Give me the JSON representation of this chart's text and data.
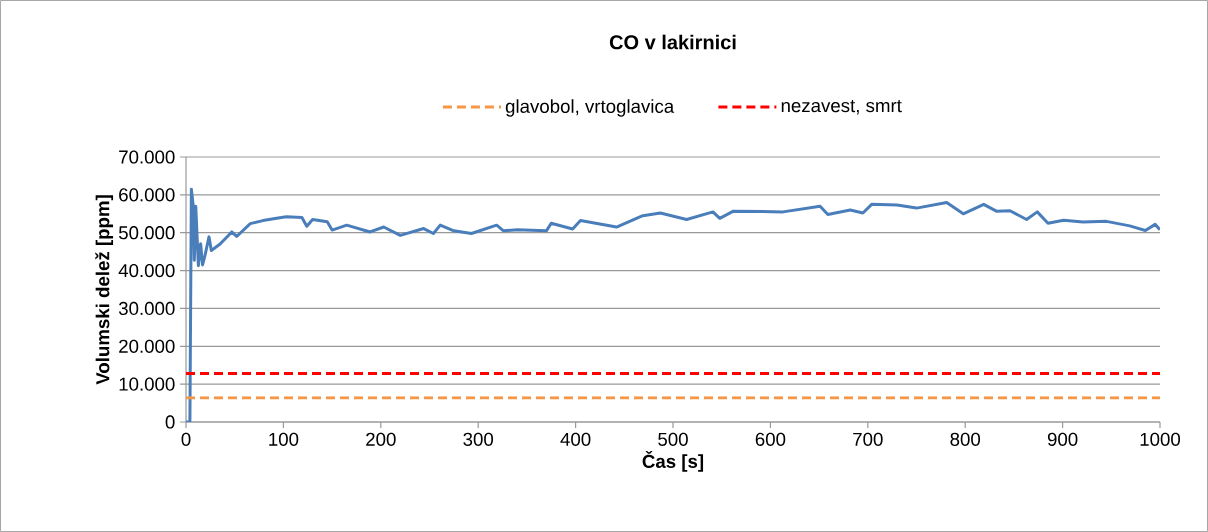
{
  "chart_data": {
    "type": "line",
    "title": "CO v lakirnici",
    "xlabel": "Čas [s]",
    "ylabel": "Volumski delež [ppm]",
    "xlim": [
      0,
      1000
    ],
    "ylim": [
      0,
      70000
    ],
    "xticks": [
      0,
      100,
      200,
      300,
      400,
      500,
      600,
      700,
      800,
      900,
      1000
    ],
    "yticks": [
      {
        "value": 0,
        "label": "0"
      },
      {
        "value": 10000,
        "label": "10.000"
      },
      {
        "value": 20000,
        "label": "20.000"
      },
      {
        "value": 30000,
        "label": "30.000"
      },
      {
        "value": 40000,
        "label": "40.000"
      },
      {
        "value": 50000,
        "label": "50.000"
      },
      {
        "value": 60000,
        "label": "60.000"
      },
      {
        "value": 70000,
        "label": "70.000"
      }
    ],
    "grid": "y",
    "legend": "top",
    "series": [
      {
        "color": "#4a7ebb",
        "line_style": "solid",
        "x": [
          0,
          2.4,
          4,
          5.5,
          7.5,
          8.5,
          10,
          12.7,
          15,
          17,
          19.5,
          23.6,
          26,
          35,
          47,
          52,
          66,
          79,
          93,
          103,
          119,
          124,
          130,
          145,
          150,
          165,
          189,
          203,
          220,
          244,
          254,
          261,
          275,
          293,
          319,
          326,
          340,
          370,
          375,
          397,
          405,
          442,
          469,
          487,
          514,
          541,
          548,
          562,
          613,
          651,
          659,
          682,
          695,
          704,
          730,
          750,
          781,
          798,
          819,
          832,
          846,
          863,
          874,
          885,
          901,
          921,
          945,
          969,
          985,
          995,
          1000
        ],
        "values": [
          0,
          0,
          0,
          61500,
          56900,
          42700,
          57000,
          41300,
          47100,
          41500,
          44000,
          48900,
          45300,
          47000,
          50200,
          49000,
          52400,
          53200,
          53800,
          54200,
          54000,
          51700,
          53500,
          52900,
          50700,
          52000,
          50200,
          51500,
          49300,
          51100,
          49800,
          52000,
          50500,
          49800,
          52000,
          50500,
          50800,
          50500,
          52500,
          51000,
          53200,
          51500,
          54500,
          55200,
          53500,
          55500,
          53800,
          55700,
          55500,
          57000,
          54800,
          56000,
          55200,
          57500,
          57300,
          56500,
          58000,
          55000,
          57500,
          55700,
          55800,
          53500,
          55500,
          52500,
          53300,
          52800,
          53000,
          51800,
          50600,
          52200,
          50800
        ]
      },
      {
        "name": "glavobol, vrtoglavica",
        "color": "#f79646",
        "line_style": "dashed",
        "x": [
          0,
          1000
        ],
        "values": [
          6400,
          6400
        ]
      },
      {
        "name": "nezavest, smrt",
        "color": "#ff0000",
        "line_style": "dashed",
        "x": [
          0,
          1000
        ],
        "values": [
          12800,
          12800
        ]
      }
    ]
  }
}
